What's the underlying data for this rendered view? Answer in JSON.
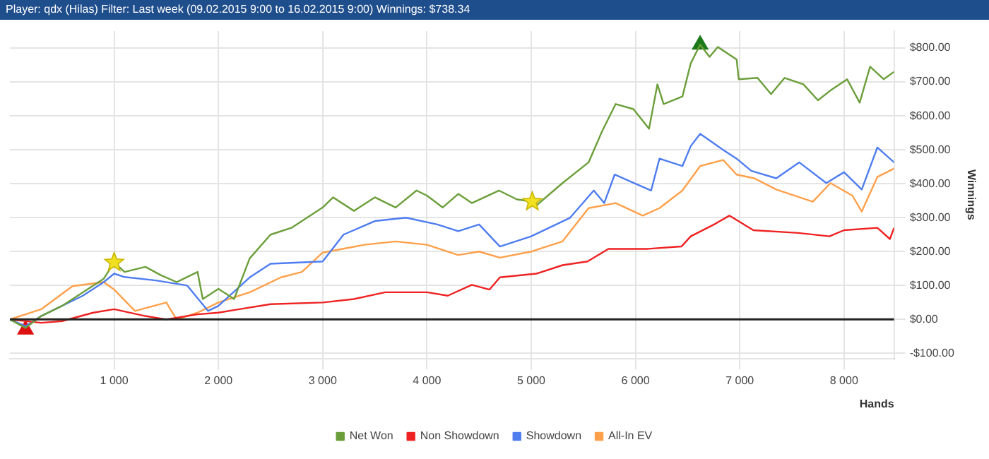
{
  "chart_data": {
    "type": "line",
    "title": "Player: qdx (Hilas)  Filter: Last week (09.02.2015 9:00 to 16.02.2015 9:00)  Winnings: $738.34",
    "xlabel": "Hands",
    "ylabel": "Winnings",
    "xlim": [
      0,
      8480
    ],
    "ylim": [
      -115,
      850
    ],
    "xticks": [
      {
        "value": 1000,
        "label": "1 000"
      },
      {
        "value": 2000,
        "label": "2 000"
      },
      {
        "value": 3000,
        "label": "3 000"
      },
      {
        "value": 4000,
        "label": "4 000"
      },
      {
        "value": 5000,
        "label": "5 000"
      },
      {
        "value": 6000,
        "label": "6 000"
      },
      {
        "value": 7000,
        "label": "7 000"
      },
      {
        "value": 8000,
        "label": "8 000"
      }
    ],
    "yticks": [
      {
        "value": -100,
        "label": "-$100.00"
      },
      {
        "value": 0,
        "label": "$0.00"
      },
      {
        "value": 100,
        "label": "$100.00"
      },
      {
        "value": 200,
        "label": "$200.00"
      },
      {
        "value": 300,
        "label": "$300.00"
      },
      {
        "value": 400,
        "label": "$400.00"
      },
      {
        "value": 500,
        "label": "$500.00"
      },
      {
        "value": 600,
        "label": "$600.00"
      },
      {
        "value": 700,
        "label": "$700.00"
      },
      {
        "value": 800,
        "label": "$800.00"
      }
    ],
    "grid": true,
    "legend": "bottom",
    "ref_lines": [
      {
        "axis": "y",
        "value": 0,
        "color": "#222222"
      }
    ],
    "series": [
      {
        "name": "Net Won",
        "color": "#6b9e3a",
        "x": [
          0,
          150,
          300,
          500,
          700,
          900,
          1000,
          1100,
          1300,
          1450,
          1600,
          1800,
          1850,
          2000,
          2150,
          2300,
          2500,
          2700,
          3000,
          3100,
          3300,
          3500,
          3700,
          3900,
          4000,
          4150,
          4300,
          4430,
          4690,
          4860,
          5010,
          5050,
          5300,
          5550,
          5680,
          5810,
          5980,
          6130,
          6210,
          6270,
          6450,
          6530,
          6620,
          6710,
          6790,
          6970,
          6990,
          7170,
          7300,
          7430,
          7610,
          7750,
          7870,
          8030,
          8150,
          8250,
          8380,
          8480
        ],
        "values": [
          0,
          -25,
          10,
          40,
          80,
          120,
          168,
          140,
          155,
          130,
          110,
          140,
          60,
          90,
          60,
          180,
          250,
          270,
          330,
          360,
          320,
          360,
          330,
          380,
          365,
          330,
          370,
          343,
          380,
          354,
          347,
          336,
          402,
          463,
          555,
          635,
          620,
          562,
          693,
          635,
          657,
          755,
          810,
          774,
          803,
          766,
          708,
          712,
          664,
          712,
          693,
          646,
          675,
          708,
          639,
          745,
          708,
          730
        ]
      },
      {
        "name": "Non Showdown",
        "color": "#ee2222",
        "x": [
          0,
          300,
          500,
          800,
          1000,
          1300,
          1500,
          1800,
          2000,
          2200,
          2500,
          3000,
          3300,
          3600,
          4000,
          4200,
          4430,
          4600,
          4700,
          5050,
          5300,
          5540,
          5740,
          6120,
          6440,
          6530,
          6760,
          6900,
          7130,
          7560,
          7860,
          8000,
          8320,
          8440,
          8480
        ],
        "values": [
          0,
          -10,
          -5,
          20,
          30,
          10,
          0,
          15,
          20,
          30,
          45,
          50,
          60,
          80,
          80,
          70,
          102,
          88,
          124,
          135,
          160,
          171,
          208,
          208,
          215,
          245,
          281,
          306,
          263,
          255,
          245,
          263,
          270,
          237,
          270
        ]
      },
      {
        "name": "Showdown",
        "color": "#4f7df0",
        "x": [
          0,
          150,
          300,
          500,
          700,
          900,
          1000,
          1100,
          1400,
          1700,
          1900,
          2000,
          2300,
          2500,
          3000,
          3200,
          3500,
          3800,
          4100,
          4300,
          4500,
          4700,
          5000,
          5370,
          5600,
          5700,
          5800,
          6150,
          6230,
          6450,
          6530,
          6620,
          6840,
          6970,
          7110,
          7350,
          7570,
          7830,
          8000,
          8170,
          8320,
          8480
        ],
        "values": [
          0,
          -20,
          10,
          40,
          70,
          110,
          135,
          125,
          115,
          100,
          25,
          40,
          124,
          164,
          171,
          250,
          290,
          300,
          280,
          260,
          280,
          215,
          245,
          299,
          380,
          343,
          427,
          380,
          474,
          452,
          511,
          547,
          500,
          474,
          438,
          416,
          463,
          402,
          434,
          383,
          507,
          463
        ]
      },
      {
        "name": "All-In EV",
        "color": "#ffa04a",
        "x": [
          0,
          300,
          600,
          900,
          1000,
          1200,
          1500,
          1600,
          1800,
          2000,
          2300,
          2600,
          2800,
          3000,
          3400,
          3700,
          4000,
          4300,
          4500,
          4700,
          5000,
          5300,
          5550,
          5810,
          6070,
          6230,
          6450,
          6620,
          6840,
          6970,
          7140,
          7350,
          7700,
          7870,
          8080,
          8170,
          8320,
          8480
        ],
        "values": [
          0,
          30,
          98,
          110,
          88,
          25,
          50,
          0,
          20,
          50,
          80,
          124,
          140,
          197,
          220,
          230,
          220,
          190,
          200,
          182,
          200,
          230,
          328,
          343,
          306,
          328,
          380,
          452,
          470,
          427,
          416,
          383,
          347,
          402,
          365,
          318,
          420,
          445
        ]
      },
      {
        "type": "scatter",
        "marker": "triangle",
        "color": "#1a7a1a",
        "x": [
          6620
        ],
        "values": [
          810
        ]
      },
      {
        "type": "scatter",
        "marker": "triangle",
        "color": "#dd1111",
        "x": [
          150
        ],
        "values": [
          -30
        ]
      },
      {
        "type": "scatter",
        "marker": "star",
        "color": "#f0e020",
        "x": [
          1000,
          5010
        ],
        "values": [
          168,
          347
        ]
      }
    ]
  }
}
